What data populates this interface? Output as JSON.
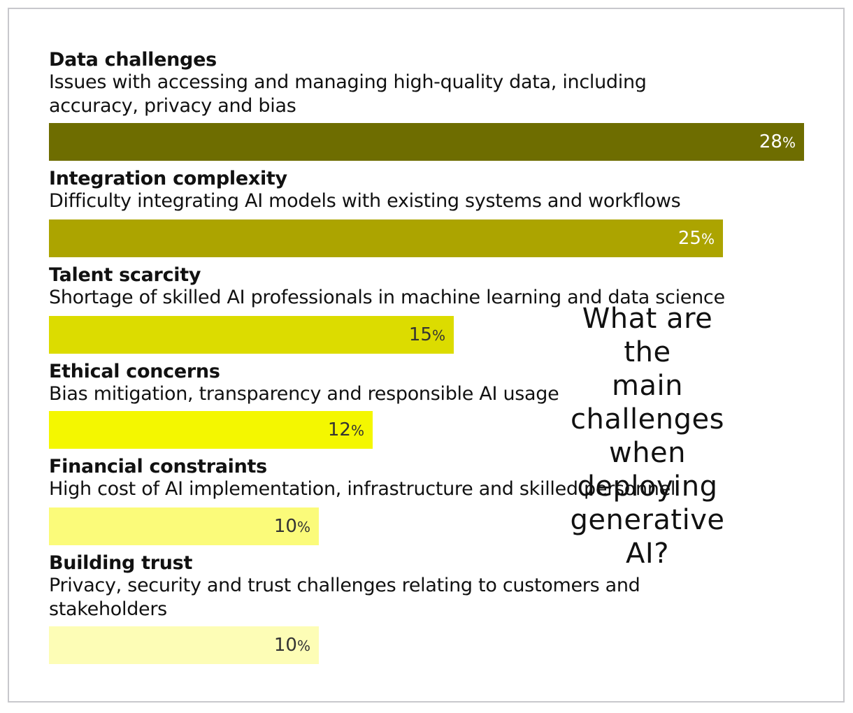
{
  "question": [
    "What are",
    "the",
    "main",
    "challenges",
    "when",
    "deploying",
    "generative",
    "AI?"
  ],
  "chart_data": {
    "type": "bar",
    "orientation": "horizontal",
    "unit": "%",
    "xlim": [
      0,
      28
    ],
    "categories": [
      "Data challenges",
      "Integration complexity",
      "Talent scarcity",
      "Ethical concerns",
      "Financial constraints",
      "Building trust"
    ],
    "descriptions": [
      "Issues with accessing and managing high-quality data, including\naccuracy, privacy and bias",
      "Difficulty integrating AI models with existing systems and workflows",
      "Shortage of skilled AI professionals in machine learning and data science",
      "Bias mitigation, transparency and responsible AI usage",
      "High cost of AI implementation, infrastructure and skilled personnel",
      "Privacy, security and trust challenges relating to customers and\nstakeholders"
    ],
    "values": [
      28,
      25,
      15,
      12,
      10,
      10
    ],
    "colors": [
      "#6e6d00",
      "#aca400",
      "#dcdc00",
      "#f4f700",
      "#fbfb7a",
      "#fdfdb6"
    ],
    "label_colors": [
      "#ffffff",
      "#ffffff",
      "#333333",
      "#333333",
      "#333333",
      "#333333"
    ]
  }
}
